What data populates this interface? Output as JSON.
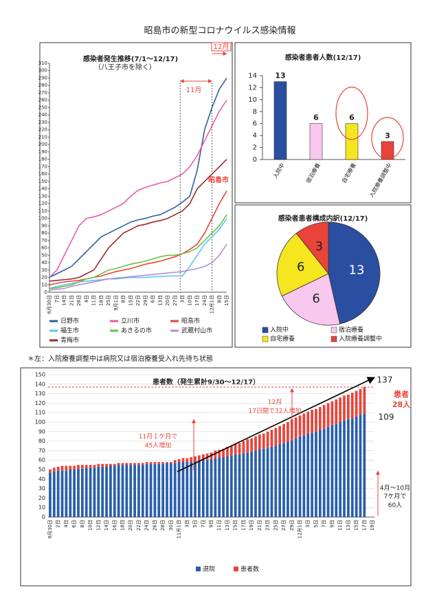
{
  "title": "昭島市の新型コロナウイルス感染情報",
  "note": "＊左：入院療養調整中は病院又は宿泊療養受入れ先待ち状態",
  "chart_data": [
    {
      "type": "line",
      "title": "感染者発生推移(7/1～12/17)",
      "subtitle": "（八王子市を除く）",
      "annotations": [
        "11月",
        "12月",
        "昭島市"
      ],
      "categories": [
        "6月30日",
        "7日",
        "14日",
        "21日",
        "28日",
        "4日",
        "11日",
        "18日",
        "25日",
        "9月1日",
        "8日",
        "15日",
        "22日",
        "29日",
        "6日",
        "13日",
        "20日",
        "27日",
        "3日",
        "10日",
        "17日",
        "24日",
        "12月1日",
        "8日",
        "15日"
      ],
      "ylim": [
        0,
        310
      ],
      "yticks": [
        0,
        10,
        20,
        30,
        40,
        50,
        60,
        70,
        80,
        90,
        100,
        110,
        120,
        130,
        140,
        150,
        160,
        170,
        180,
        190,
        200,
        210,
        220,
        230,
        240,
        250,
        260,
        270,
        280,
        290,
        300,
        310
      ],
      "series": [
        {
          "name": "日野市",
          "color": "#2f5f9e",
          "values": [
            20,
            25,
            30,
            35,
            45,
            55,
            65,
            75,
            80,
            85,
            90,
            95,
            98,
            100,
            103,
            105,
            110,
            115,
            122,
            130,
            165,
            220,
            250,
            275,
            290
          ]
        },
        {
          "name": "立川市",
          "color": "#e85aa8",
          "values": [
            20,
            30,
            50,
            70,
            90,
            100,
            102,
            105,
            110,
            115,
            120,
            130,
            138,
            142,
            145,
            148,
            150,
            155,
            160,
            170,
            185,
            205,
            225,
            245,
            260
          ]
        },
        {
          "name": "昭島市",
          "color": "#e8443a",
          "values": [
            10,
            12,
            14,
            15,
            16,
            18,
            20,
            22,
            25,
            28,
            30,
            32,
            35,
            38,
            40,
            42,
            45,
            48,
            52,
            58,
            65,
            80,
            100,
            120,
            137
          ]
        },
        {
          "name": "福生市",
          "color": "#59c8e8",
          "values": [
            5,
            8,
            10,
            12,
            14,
            15,
            16,
            17,
            18,
            18,
            19,
            20,
            20,
            20,
            21,
            21,
            22,
            22,
            22,
            35,
            50,
            65,
            75,
            85,
            100
          ]
        },
        {
          "name": "あきるの市",
          "color": "#6cc04a",
          "values": [
            5,
            6,
            8,
            10,
            14,
            18,
            20,
            25,
            30,
            32,
            35,
            38,
            40,
            42,
            45,
            48,
            50,
            50,
            52,
            55,
            60,
            70,
            80,
            90,
            105
          ]
        },
        {
          "name": "武蔵村山市",
          "color": "#b38ad8",
          "values": [
            3,
            4,
            5,
            8,
            10,
            12,
            14,
            16,
            18,
            19,
            20,
            21,
            22,
            23,
            24,
            25,
            26,
            27,
            28,
            30,
            32,
            35,
            40,
            50,
            65
          ]
        },
        {
          "name": "青梅市",
          "color": "#9c2a2a",
          "values": [
            15,
            16,
            17,
            18,
            20,
            25,
            30,
            45,
            60,
            70,
            80,
            85,
            90,
            92,
            95,
            97,
            100,
            105,
            110,
            120,
            140,
            150,
            160,
            170,
            180
          ]
        }
      ]
    },
    {
      "type": "bar",
      "title": "感染者患者人数(12/17)",
      "categories": [
        "入院中",
        "宿泊療養",
        "自宅療養",
        "入院療養調整中"
      ],
      "values": [
        13,
        6,
        6,
        3
      ],
      "colors": [
        "#2a4ea0",
        "#f9c8ee",
        "#f6e620",
        "#e8443a"
      ],
      "ylim": [
        0,
        14
      ],
      "yticks": [
        0,
        2,
        4,
        6,
        8,
        10,
        12,
        14
      ]
    },
    {
      "type": "pie",
      "title": "感染者患者構成内訳(12/17)",
      "categories": [
        "入院中",
        "宿泊療養",
        "自宅療養",
        "入院療養調整中"
      ],
      "values": [
        13,
        6,
        6,
        3
      ],
      "colors": [
        "#2a4ea0",
        "#f9c8ee",
        "#f6e620",
        "#e8443a"
      ]
    },
    {
      "type": "stacked_bar",
      "title": "患者数（発生累計9/30～12/17）",
      "annotations": {
        "total": 137,
        "discharged": 109,
        "patients_1": "患者",
        "patients_2": "28人",
        "dec_1": "12月",
        "dec_2": "17日間で32人増加",
        "nov_1": "11月１ケ月で",
        "nov_2": "45人増加",
        "early_1": "4月～10月",
        "early_2": "7ケ月で",
        "early_3": "60人"
      },
      "categories": [
        "9月30日",
        null,
        "2日",
        null,
        "4日",
        null,
        "6日",
        null,
        "8日",
        null,
        "10日",
        null,
        "12日",
        null,
        "14日",
        null,
        "16日",
        null,
        "18日",
        null,
        "20日",
        null,
        "22日",
        null,
        "24日",
        null,
        "26日",
        null,
        "28日",
        null,
        "30日",
        null,
        "11月1日",
        null,
        "3日",
        null,
        "5日",
        null,
        "7日",
        null,
        "9日",
        null,
        "11日",
        null,
        "13日",
        null,
        "15日",
        null,
        "17日",
        null,
        "19日",
        null,
        "21日",
        null,
        "23日",
        null,
        "25日",
        null,
        "27日",
        null,
        "29日",
        null,
        "12月1日",
        null,
        "3日",
        null,
        "5日",
        null,
        "7日",
        null,
        "9日",
        null,
        "11日",
        null,
        "13日",
        null,
        "15日",
        null,
        "17日",
        null,
        "19日"
      ],
      "ylim": [
        0,
        150
      ],
      "yticks": [
        0,
        10,
        20,
        30,
        40,
        50,
        60,
        70,
        80,
        90,
        100,
        110,
        120,
        130,
        140,
        150
      ],
      "series": [
        {
          "name": "退院",
          "color": "#2a5faa",
          "values": [
            47,
            48,
            49,
            49,
            49,
            50,
            50,
            51,
            51,
            52,
            52,
            52,
            53,
            53,
            53,
            54,
            54,
            55,
            55,
            55,
            55,
            55,
            55,
            55,
            56,
            56,
            56,
            56,
            56,
            57,
            57,
            57,
            58,
            58,
            58,
            58,
            59,
            59,
            60,
            60,
            61,
            62,
            63,
            63,
            64,
            65,
            66,
            66,
            67,
            68,
            69,
            70,
            71,
            72,
            73,
            74,
            75,
            77,
            78,
            79,
            81,
            83,
            85,
            86,
            88,
            89,
            90,
            92,
            93,
            95,
            97,
            98,
            100,
            102,
            103,
            104,
            106,
            108,
            109,
            null,
            null
          ]
        },
        {
          "name": "患者数",
          "color": "#e8443a",
          "values": [
            3,
            4,
            4,
            5,
            5,
            4,
            4,
            4,
            4,
            3,
            3,
            3,
            3,
            3,
            3,
            2,
            2,
            2,
            2,
            2,
            2,
            2,
            2,
            2,
            2,
            2,
            2,
            2,
            2,
            1,
            1,
            3,
            3,
            4,
            4,
            5,
            5,
            6,
            6,
            7,
            7,
            8,
            8,
            9,
            10,
            10,
            11,
            12,
            13,
            14,
            14,
            15,
            16,
            16,
            17,
            18,
            19,
            19,
            20,
            21,
            22,
            22,
            22,
            23,
            23,
            24,
            24,
            24,
            25,
            25,
            25,
            26,
            26,
            26,
            26,
            27,
            27,
            27,
            28,
            null,
            null
          ]
        }
      ]
    }
  ]
}
